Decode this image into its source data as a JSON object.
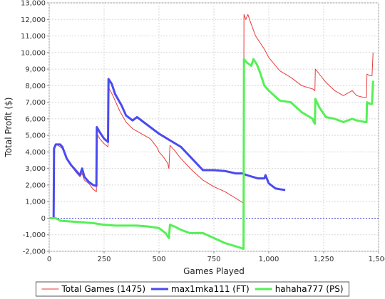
{
  "chart_data": {
    "type": "line",
    "xlabel": "Games Played",
    "ylabel": "Total Profit ($)",
    "xlim": [
      0,
      1500
    ],
    "ylim": [
      -2000,
      13000
    ],
    "x_ticks": [
      0,
      250,
      500,
      750,
      1000,
      1250,
      1500
    ],
    "x_tick_labels": [
      "0",
      "250",
      "500",
      "750",
      "1,000",
      "1,250",
      "1,500"
    ],
    "y_ticks": [
      -2000,
      -1000,
      0,
      1000,
      2000,
      3000,
      4000,
      5000,
      6000,
      7000,
      8000,
      9000,
      10000,
      11000,
      12000,
      13000
    ],
    "y_tick_labels": [
      "-2,000",
      "-1,000",
      "0",
      "1,000",
      "2,000",
      "3,000",
      "4,000",
      "5,000",
      "6,000",
      "7,000",
      "8,000",
      "9,000",
      "10,000",
      "11,000",
      "12,000",
      "13,000"
    ],
    "grid": true,
    "zero_line": true,
    "legend_position": "bottom",
    "series": [
      {
        "name": "Total Games (1475)",
        "color": "#e83a3a",
        "width": 1,
        "points": [
          [
            0,
            0
          ],
          [
            20,
            0
          ],
          [
            22,
            4200
          ],
          [
            30,
            4500
          ],
          [
            45,
            4350
          ],
          [
            60,
            4200
          ],
          [
            80,
            3600
          ],
          [
            100,
            3200
          ],
          [
            120,
            2800
          ],
          [
            140,
            2500
          ],
          [
            150,
            2700
          ],
          [
            160,
            2300
          ],
          [
            180,
            2100
          ],
          [
            200,
            1750
          ],
          [
            215,
            1600
          ],
          [
            217,
            5100
          ],
          [
            230,
            4800
          ],
          [
            250,
            4500
          ],
          [
            268,
            4300
          ],
          [
            270,
            7900
          ],
          [
            290,
            7400
          ],
          [
            320,
            6500
          ],
          [
            350,
            5800
          ],
          [
            380,
            5400
          ],
          [
            420,
            5100
          ],
          [
            460,
            4800
          ],
          [
            490,
            4300
          ],
          [
            500,
            4000
          ],
          [
            520,
            3700
          ],
          [
            540,
            3300
          ],
          [
            545,
            3000
          ],
          [
            550,
            4400
          ],
          [
            570,
            4100
          ],
          [
            600,
            3600
          ],
          [
            650,
            2900
          ],
          [
            700,
            2300
          ],
          [
            750,
            1900
          ],
          [
            800,
            1600
          ],
          [
            850,
            1200
          ],
          [
            885,
            900
          ],
          [
            887,
            12300
          ],
          [
            895,
            12000
          ],
          [
            905,
            12300
          ],
          [
            915,
            11900
          ],
          [
            940,
            11000
          ],
          [
            980,
            10200
          ],
          [
            1000,
            9700
          ],
          [
            1050,
            8900
          ],
          [
            1100,
            8500
          ],
          [
            1150,
            8000
          ],
          [
            1200,
            7800
          ],
          [
            1210,
            7700
          ],
          [
            1212,
            9000
          ],
          [
            1230,
            8700
          ],
          [
            1260,
            8200
          ],
          [
            1300,
            7700
          ],
          [
            1340,
            7400
          ],
          [
            1380,
            7700
          ],
          [
            1400,
            7400
          ],
          [
            1430,
            7300
          ],
          [
            1445,
            7300
          ],
          [
            1447,
            8700
          ],
          [
            1460,
            8600
          ],
          [
            1470,
            8600
          ],
          [
            1475,
            10000
          ]
        ]
      },
      {
        "name": "max1mka111 (FT)",
        "color": "#4a4af0",
        "width": 3,
        "points": [
          [
            0,
            0
          ],
          [
            20,
            0
          ],
          [
            22,
            4200
          ],
          [
            30,
            4450
          ],
          [
            50,
            4450
          ],
          [
            60,
            4300
          ],
          [
            80,
            3600
          ],
          [
            100,
            3200
          ],
          [
            120,
            2900
          ],
          [
            140,
            2600
          ],
          [
            150,
            3000
          ],
          [
            160,
            2500
          ],
          [
            180,
            2200
          ],
          [
            200,
            2000
          ],
          [
            215,
            1950
          ],
          [
            217,
            5500
          ],
          [
            230,
            5200
          ],
          [
            250,
            4800
          ],
          [
            268,
            4600
          ],
          [
            270,
            8400
          ],
          [
            285,
            8100
          ],
          [
            300,
            7500
          ],
          [
            330,
            6800
          ],
          [
            350,
            6200
          ],
          [
            380,
            5900
          ],
          [
            400,
            6100
          ],
          [
            430,
            5800
          ],
          [
            460,
            5500
          ],
          [
            500,
            5100
          ],
          [
            550,
            4700
          ],
          [
            600,
            4300
          ],
          [
            650,
            3600
          ],
          [
            700,
            2900
          ],
          [
            750,
            2900
          ],
          [
            800,
            2850
          ],
          [
            850,
            2700
          ],
          [
            880,
            2700
          ],
          [
            900,
            2600
          ],
          [
            950,
            2400
          ],
          [
            980,
            2400
          ],
          [
            985,
            2600
          ],
          [
            1000,
            2100
          ],
          [
            1030,
            1800
          ],
          [
            1050,
            1750
          ],
          [
            1075,
            1700
          ]
        ]
      },
      {
        "name": "hahaha777 (PS)",
        "color": "#55f055",
        "width": 3,
        "points": [
          [
            0,
            0
          ],
          [
            20,
            0
          ],
          [
            30,
            0
          ],
          [
            50,
            -150
          ],
          [
            100,
            -200
          ],
          [
            150,
            -250
          ],
          [
            200,
            -300
          ],
          [
            250,
            -400
          ],
          [
            300,
            -450
          ],
          [
            400,
            -450
          ],
          [
            450,
            -500
          ],
          [
            500,
            -600
          ],
          [
            530,
            -900
          ],
          [
            545,
            -1200
          ],
          [
            550,
            -400
          ],
          [
            570,
            -500
          ],
          [
            600,
            -700
          ],
          [
            640,
            -900
          ],
          [
            700,
            -900
          ],
          [
            750,
            -1200
          ],
          [
            800,
            -1500
          ],
          [
            850,
            -1700
          ],
          [
            885,
            -1850
          ],
          [
            887,
            9600
          ],
          [
            900,
            9400
          ],
          [
            920,
            9200
          ],
          [
            930,
            9600
          ],
          [
            945,
            9300
          ],
          [
            960,
            8800
          ],
          [
            980,
            8000
          ],
          [
            1000,
            7700
          ],
          [
            1050,
            7100
          ],
          [
            1100,
            7000
          ],
          [
            1150,
            6400
          ],
          [
            1200,
            6000
          ],
          [
            1205,
            5800
          ],
          [
            1210,
            5700
          ],
          [
            1212,
            7200
          ],
          [
            1230,
            6700
          ],
          [
            1260,
            6100
          ],
          [
            1300,
            6000
          ],
          [
            1340,
            5800
          ],
          [
            1380,
            6000
          ],
          [
            1400,
            5900
          ],
          [
            1440,
            5800
          ],
          [
            1445,
            5800
          ],
          [
            1447,
            7000
          ],
          [
            1460,
            6900
          ],
          [
            1470,
            6900
          ],
          [
            1475,
            8300
          ]
        ]
      }
    ]
  }
}
